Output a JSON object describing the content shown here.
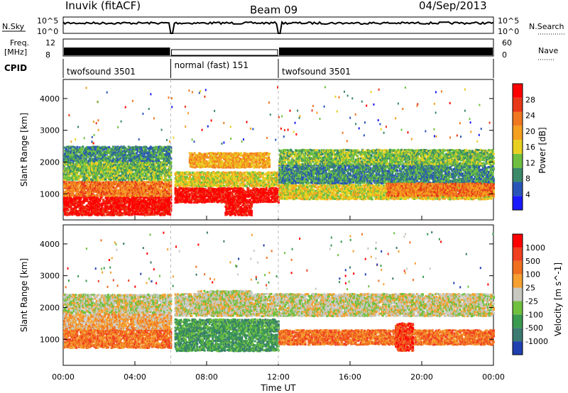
{
  "header": {
    "station": "Inuvik (fitACF)",
    "beam": "Beam 09",
    "date": "04/Sep/2013"
  },
  "top_panels": {
    "nsky_label": "N.Sky",
    "nsky_ticks": [
      "10^5",
      "10^0"
    ],
    "nsearch_label": "N.Search",
    "nsearch_ticks": [
      "10^5",
      "10^0"
    ],
    "freq_label_line1": "Freq.",
    "freq_label_line2": "[MHz]",
    "freq_ticks": [
      "12",
      "8"
    ],
    "nave_label": "Nave",
    "nave_ticks": [
      "60",
      "0"
    ],
    "cpid_label": "CPID",
    "cpid_segments": [
      {
        "name": "twofsound 3501",
        "start_hr": 0,
        "end_hr": 6
      },
      {
        "name": "normal (fast) 151",
        "start_hr": 6,
        "end_hr": 12
      },
      {
        "name": "twofsound 3501",
        "start_hr": 12,
        "end_hr": 24
      }
    ]
  },
  "chart_data": [
    {
      "type": "heatmap",
      "ylabel": "Slant Range [km]",
      "ytick_labels": [
        "1000",
        "2000",
        "3000",
        "4000"
      ],
      "yticks": [
        1000,
        2000,
        3000,
        4000
      ],
      "ylim": [
        180,
        4600
      ],
      "xlim": [
        0,
        24
      ],
      "colorbar_label": "Power [dB]",
      "colorbar_ticks": [
        "4",
        "8",
        "12",
        "16",
        "20",
        "24",
        "28"
      ],
      "colorbar_colors": [
        "#1a1aff",
        "#2a55b8",
        "#3a8a6a",
        "#6fc040",
        "#e8d020",
        "#f5a020",
        "#f07820",
        "#e83818",
        "#ff0000"
      ],
      "range_bands": [
        {
          "x_start": 0.0,
          "x_end": 6.0,
          "y_start": 300,
          "y_end": 900,
          "level": 8
        },
        {
          "x_start": 0.0,
          "x_end": 6.0,
          "y_start": 900,
          "y_end": 1400,
          "level": 6
        },
        {
          "x_start": 0.0,
          "x_end": 6.0,
          "y_start": 1400,
          "y_end": 2000,
          "level": 3
        },
        {
          "x_start": 0.0,
          "x_end": 6.0,
          "y_start": 2000,
          "y_end": 2500,
          "level": 2
        },
        {
          "x_start": 6.2,
          "x_end": 12.0,
          "y_start": 700,
          "y_end": 1200,
          "level": 8
        },
        {
          "x_start": 6.2,
          "x_end": 12.0,
          "y_start": 1200,
          "y_end": 1700,
          "level": 4
        },
        {
          "x_start": 7.0,
          "x_end": 11.5,
          "y_start": 1800,
          "y_end": 2300,
          "level": 5
        },
        {
          "x_start": 9.0,
          "x_end": 10.5,
          "y_start": 300,
          "y_end": 700,
          "level": 8
        },
        {
          "x_start": 12.0,
          "x_end": 24.0,
          "y_start": 800,
          "y_end": 1300,
          "level": 4
        },
        {
          "x_start": 12.0,
          "x_end": 24.0,
          "y_start": 1300,
          "y_end": 1900,
          "level": 2
        },
        {
          "x_start": 12.0,
          "x_end": 24.0,
          "y_start": 1900,
          "y_end": 2400,
          "level": 3
        },
        {
          "x_start": 18.0,
          "x_end": 24.0,
          "y_start": 900,
          "y_end": 1300,
          "level": 6
        }
      ]
    },
    {
      "type": "heatmap",
      "ylabel": "Slant Range [km]",
      "ytick_labels": [
        "1000",
        "2000",
        "3000",
        "4000"
      ],
      "yticks": [
        1000,
        2000,
        3000,
        4000
      ],
      "ylim": [
        180,
        4600
      ],
      "xlim": [
        0,
        24
      ],
      "xtick_labels": [
        "00:00",
        "04:00",
        "08:00",
        "12:00",
        "16:00",
        "20:00",
        "00:00"
      ],
      "xticks": [
        0,
        4,
        8,
        12,
        16,
        20,
        24
      ],
      "xlabel": "Time UT",
      "colorbar_label": "Velocity [m s^-1]",
      "colorbar_ticks": [
        "1000",
        "500",
        "100",
        "25",
        "-25",
        "-100",
        "-500",
        "-1000"
      ],
      "colorbar_colors": [
        "#2040b0",
        "#3a7a70",
        "#3a9a50",
        "#70c040",
        "#c8c8c0",
        "#f5a030",
        "#f07020",
        "#f04020",
        "#ff0000"
      ],
      "range_bands": [
        {
          "x_start": 0.0,
          "x_end": 6.0,
          "y_start": 700,
          "y_end": 1300,
          "level": 6
        },
        {
          "x_start": 0.0,
          "x_end": 6.0,
          "y_start": 1300,
          "y_end": 1800,
          "level": 5
        },
        {
          "x_start": 0.0,
          "x_end": 6.0,
          "y_start": 1800,
          "y_end": 2400,
          "level": 4
        },
        {
          "x_start": 6.2,
          "x_end": 12.0,
          "y_start": 600,
          "y_end": 1600,
          "level": 2
        },
        {
          "x_start": 6.2,
          "x_end": 12.0,
          "y_start": 1700,
          "y_end": 2400,
          "level": 4
        },
        {
          "x_start": 7.5,
          "x_end": 10.5,
          "y_start": 1800,
          "y_end": 2500,
          "level": 4
        },
        {
          "x_start": 12.0,
          "x_end": 24.0,
          "y_start": 800,
          "y_end": 1300,
          "level": 6
        },
        {
          "x_start": 12.0,
          "x_end": 24.0,
          "y_start": 1700,
          "y_end": 2400,
          "level": 4
        },
        {
          "x_start": 18.5,
          "x_end": 19.5,
          "y_start": 600,
          "y_end": 1500,
          "level": 7
        }
      ]
    }
  ]
}
